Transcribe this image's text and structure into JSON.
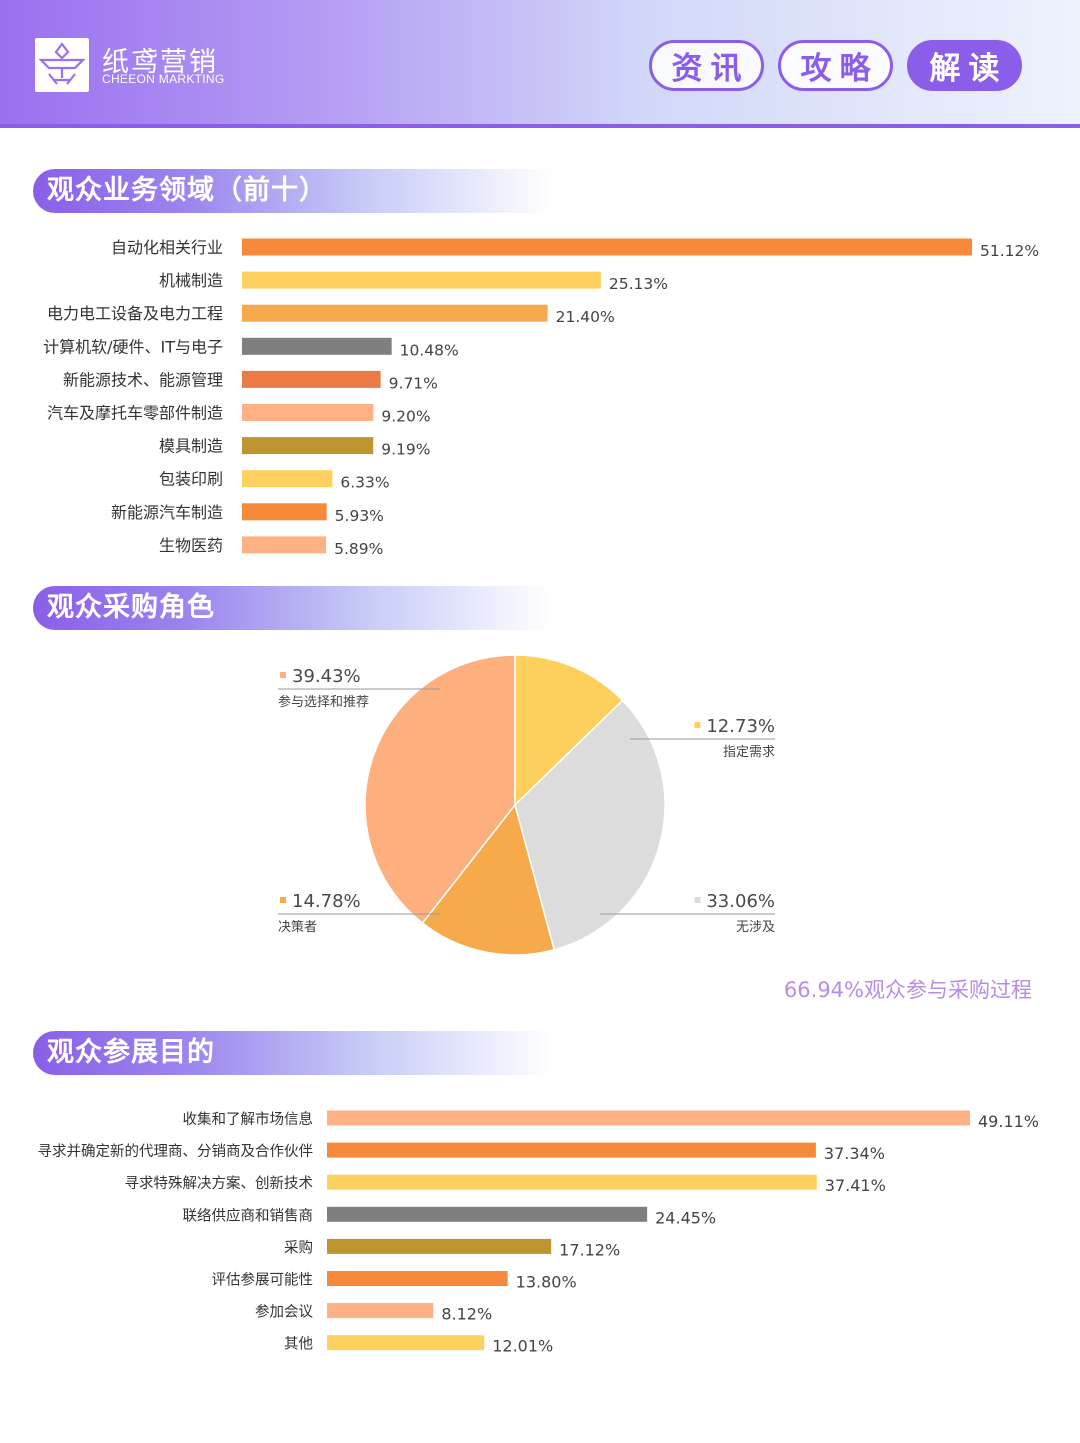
{
  "header": {
    "logo_cn": "纸鸢营销",
    "logo_en": "CHEEON MARKTING",
    "nav": [
      {
        "label": "资讯",
        "active": false
      },
      {
        "label": "攻略",
        "active": false
      },
      {
        "label": "解读",
        "active": true
      }
    ]
  },
  "sections": {
    "industry_title": "观众业务领域（前十）",
    "role_title": "观众采购角色",
    "purpose_title": "观众参展目的"
  },
  "pie_note": "66.94%观众参与采购过程",
  "chart_data": [
    {
      "type": "bar",
      "orientation": "horizontal",
      "categories": [
        "自动化相关行业",
        "机械制造",
        "电力电工设备及电力工程",
        "计算机软/硬件、IT与电子",
        "新能源技术、能源管理",
        "汽车及摩托车零部件制造",
        "模具制造",
        "包装印刷",
        "新能源汽车制造",
        "生物医药"
      ],
      "values": [
        51.12,
        25.13,
        21.4,
        10.48,
        9.71,
        9.2,
        9.19,
        6.33,
        5.93,
        5.89
      ],
      "labels": [
        "51.12%",
        "25.13%",
        "21.40%",
        "10.48%",
        "9.71%",
        "9.20%",
        "9.19%",
        "6.33%",
        "5.93%",
        "5.89%"
      ],
      "colors": [
        "#f7893a",
        "#fdd05f",
        "#f6a94b",
        "#7f7f7f",
        "#ec7a47",
        "#feb184",
        "#be9530",
        "#fdd05f",
        "#f7893a",
        "#feb184"
      ],
      "xlim": [
        0,
        51.12
      ]
    },
    {
      "type": "pie",
      "slices": [
        {
          "label": "参与选择和推荐",
          "value": 39.43,
          "display": "39.43%",
          "color": "#fdb07e"
        },
        {
          "label": "指定需求",
          "value": 12.73,
          "display": "12.73%",
          "color": "#fdd05e"
        },
        {
          "label": "无涉及",
          "value": 33.06,
          "display": "33.06%",
          "color": "#dcdcdc"
        },
        {
          "label": "决策者",
          "value": 14.78,
          "display": "14.78%",
          "color": "#f6aa4b"
        }
      ]
    },
    {
      "type": "bar",
      "orientation": "horizontal",
      "categories": [
        "收集和了解市场信息",
        "寻求并确定新的代理商、分销商及合作伙伴",
        "寻求特殊解决方案、创新技术",
        "联络供应商和销售商",
        "采购",
        "评估参展可能性",
        "参加会议",
        "其他"
      ],
      "values": [
        49.11,
        37.34,
        37.41,
        24.45,
        17.12,
        13.8,
        8.12,
        12.01
      ],
      "labels": [
        "49.11%",
        "37.34%",
        "37.41%",
        "24.45%",
        "17.12%",
        "13.80%",
        "8.12%",
        "12.01%"
      ],
      "colors": [
        "#feb184",
        "#f7893a",
        "#fdd05f",
        "#7f7f7f",
        "#be9530",
        "#f7893a",
        "#feb184",
        "#fdd05f"
      ],
      "xlim": [
        0,
        49.11
      ]
    }
  ]
}
